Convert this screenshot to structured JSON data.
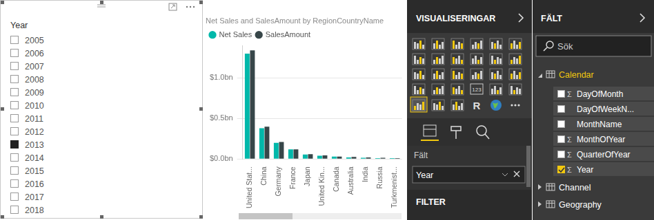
{
  "slicer": {
    "title": "Year",
    "items": [
      {
        "label": "2005",
        "checked": false
      },
      {
        "label": "2006",
        "checked": false
      },
      {
        "label": "2007",
        "checked": false
      },
      {
        "label": "2008",
        "checked": false
      },
      {
        "label": "2009",
        "checked": false
      },
      {
        "label": "2010",
        "checked": false
      },
      {
        "label": "2011",
        "checked": false
      },
      {
        "label": "2012",
        "checked": false
      },
      {
        "label": "2013",
        "checked": true
      },
      {
        "label": "2014",
        "checked": false
      },
      {
        "label": "2015",
        "checked": false
      },
      {
        "label": "2016",
        "checked": false
      },
      {
        "label": "2017",
        "checked": false
      },
      {
        "label": "2018",
        "checked": false
      }
    ]
  },
  "chart_data": {
    "type": "bar",
    "title": "Net Sales and SalesAmount by RegionCountryName",
    "categories": [
      "United Stat...",
      "China",
      "Germany",
      "France",
      "Japan",
      "United Kin...",
      "Canada",
      "Australia",
      "India",
      "Russia",
      "Turkmenist..."
    ],
    "series": [
      {
        "name": "Net Sales",
        "color": "#01b8aa",
        "values": [
          1.3,
          0.38,
          0.2,
          0.12,
          0.055,
          0.04,
          0.03,
          0.02,
          0.015,
          0.012,
          0.01
        ]
      },
      {
        "name": "SalesAmount",
        "color": "#374649",
        "values": [
          1.34,
          0.4,
          0.21,
          0.12,
          0.06,
          0.045,
          0.03,
          0.025,
          0.02,
          0.015,
          0.012
        ]
      }
    ],
    "ylim": [
      0,
      1.4
    ],
    "yticks": [
      {
        "value": 0,
        "label": "$0.0bn"
      },
      {
        "value": 0.5,
        "label": "$0.5bn"
      },
      {
        "value": 1.0,
        "label": "$1.0bn"
      }
    ],
    "grid": true,
    "legend": "top-left"
  },
  "visualizations": {
    "title": "VISUALISERINGAR",
    "icon_texts": [
      "123",
      "R"
    ],
    "fields_label": "Fält",
    "field_well": "Year",
    "filter": "FILTER"
  },
  "fields": {
    "title": "FÄLT",
    "search": "Sök",
    "sum_symbol": "Σ",
    "tables": [
      {
        "name": "Calendar",
        "expanded": true,
        "fields": [
          {
            "name": "DayOfMonth",
            "sum": true,
            "checked": false
          },
          {
            "name": "DayOfWeekN...",
            "sum": false,
            "checked": false
          },
          {
            "name": "MonthName",
            "sum": false,
            "checked": false
          },
          {
            "name": "MonthOfYear",
            "sum": true,
            "checked": false
          },
          {
            "name": "QuarterOfYear",
            "sum": true,
            "checked": false
          },
          {
            "name": "Year",
            "sum": true,
            "checked": true
          }
        ]
      },
      {
        "name": "Channel",
        "expanded": false
      },
      {
        "name": "Geography",
        "expanded": false
      }
    ]
  }
}
